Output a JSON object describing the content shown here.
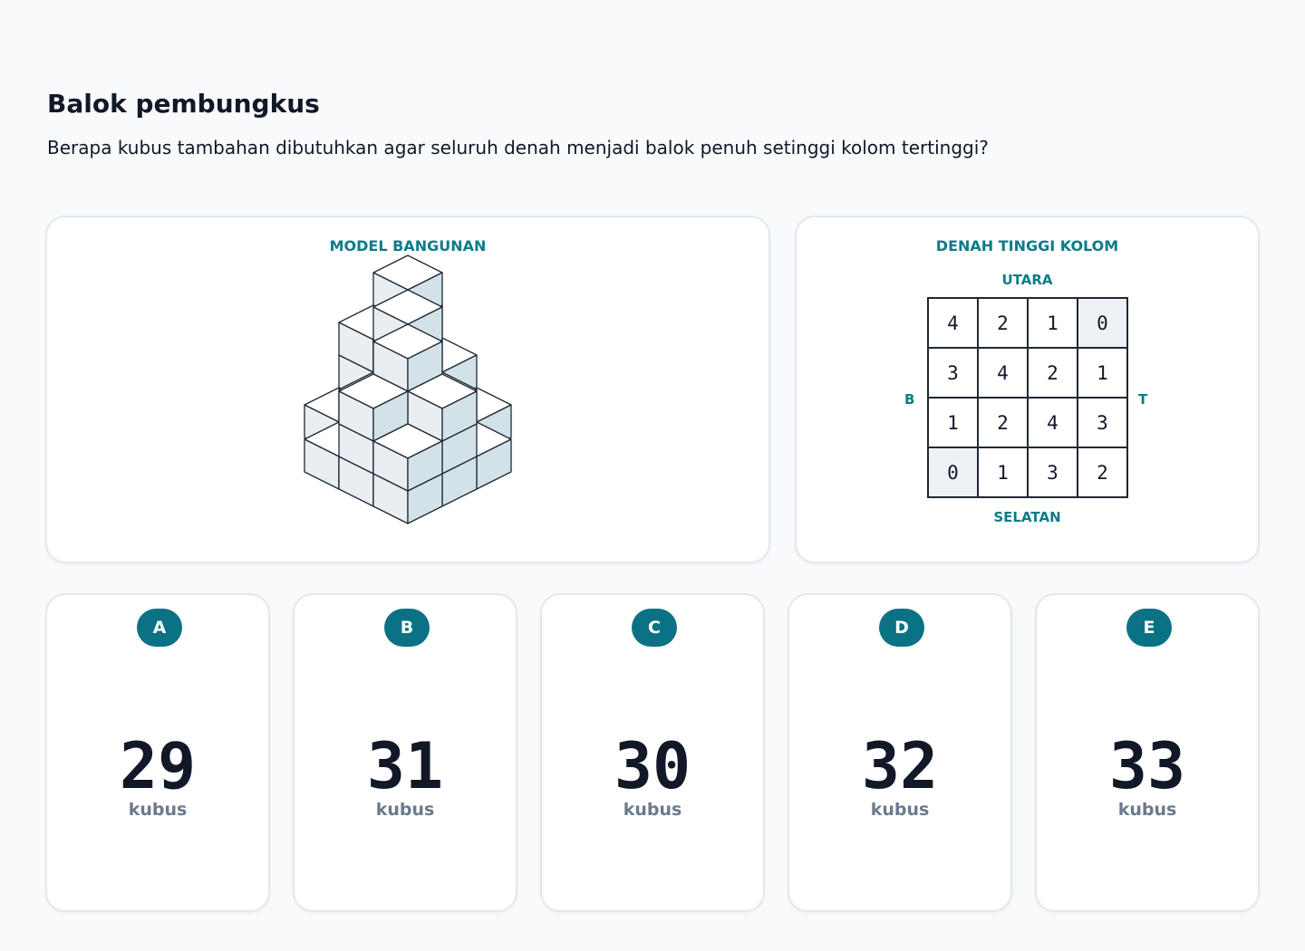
{
  "header": {
    "title": "Balok pembungkus",
    "question": "Berapa kubus tambahan dibutuhkan agar seluruh denah menjadi balok penuh setinggi kolom tertinggi?"
  },
  "model": {
    "label": "MODEL BANGUNAN"
  },
  "plan": {
    "label": "DENAH TINGGI KOLOM",
    "north": "UTARA",
    "south": "SELATAN",
    "west": "B",
    "east": "T",
    "grid": [
      [
        4,
        2,
        1,
        0
      ],
      [
        3,
        4,
        2,
        1
      ],
      [
        1,
        2,
        4,
        3
      ],
      [
        0,
        1,
        3,
        2
      ]
    ]
  },
  "options": [
    {
      "letter": "A",
      "value": 29,
      "unit": "kubus"
    },
    {
      "letter": "B",
      "value": 31,
      "unit": "kubus"
    },
    {
      "letter": "C",
      "value": 30,
      "unit": "kubus"
    },
    {
      "letter": "D",
      "value": 32,
      "unit": "kubus"
    },
    {
      "letter": "E",
      "value": 33,
      "unit": "kubus"
    }
  ]
}
